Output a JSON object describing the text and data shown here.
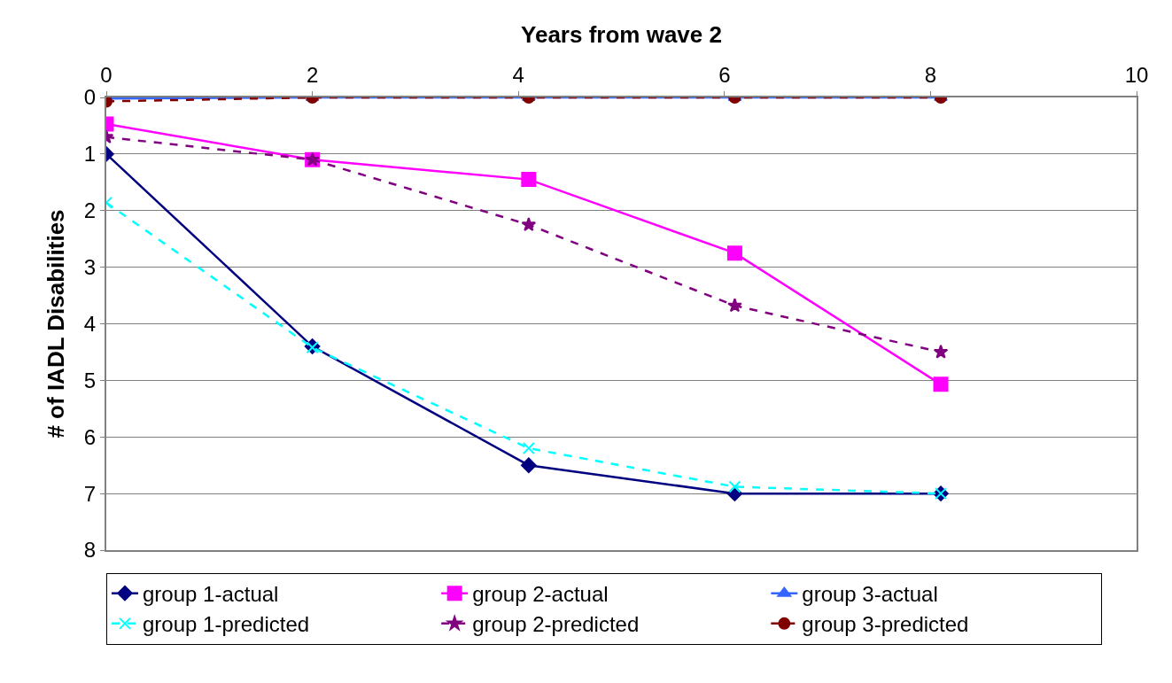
{
  "chart_data": {
    "type": "line",
    "xlabel": "Years from wave 2",
    "ylabel": "# of IADL Disabilities",
    "x": [
      0,
      2,
      4.1,
      6.1,
      8.1
    ],
    "xlim": [
      0,
      10
    ],
    "xticks": [
      0,
      2,
      4,
      6,
      8,
      10
    ],
    "ylim": [
      8,
      0
    ],
    "yticks": [
      0,
      1,
      2,
      3,
      4,
      5,
      6,
      7,
      8
    ],
    "grid": "y",
    "legend": "bottom",
    "series": [
      {
        "name": "group 1-actual",
        "color": "#000080",
        "marker": "diamond",
        "line_style": "solid",
        "values": [
          1.0,
          4.4,
          6.5,
          7.0,
          7.0
        ]
      },
      {
        "name": "group 2-actual",
        "color": "#ff00ff",
        "marker": "square",
        "line_style": "solid",
        "values": [
          0.47,
          1.1,
          1.45,
          2.75,
          5.07
        ]
      },
      {
        "name": "group 3-actual",
        "color": "#3366ff",
        "marker": "triangle",
        "line_style": "solid",
        "values": [
          0.02,
          0.0,
          0.0,
          0.0,
          0.0
        ]
      },
      {
        "name": "group 1-predicted",
        "color": "#00ffff",
        "marker": "cross",
        "line_style": "dashed",
        "values": [
          1.86,
          4.42,
          6.2,
          6.88,
          7.0
        ]
      },
      {
        "name": "group 2-predicted",
        "color": "#800080",
        "marker": "star",
        "line_style": "dashed",
        "values": [
          0.7,
          1.1,
          2.25,
          3.68,
          4.5
        ]
      },
      {
        "name": "group 3-predicted",
        "color": "#800000",
        "marker": "circle",
        "line_style": "dashed",
        "values": [
          0.07,
          0.0,
          0.0,
          0.0,
          0.0
        ]
      }
    ]
  }
}
